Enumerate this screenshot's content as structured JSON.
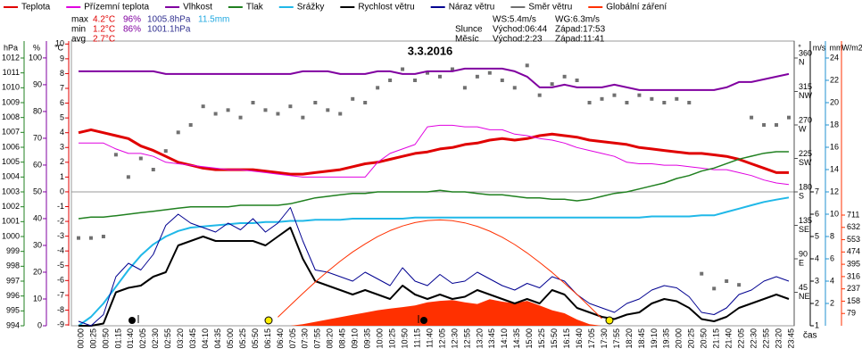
{
  "chart_data": {
    "type": "line",
    "title": "3.3.2016",
    "x_label": "čas",
    "categories": [
      "00:00",
      "00:25",
      "00:50",
      "01:15",
      "01:40",
      "02:05",
      "02:30",
      "02:55",
      "03:20",
      "03:45",
      "04:10",
      "04:35",
      "05:00",
      "05:25",
      "05:50",
      "06:15",
      "06:40",
      "07:05",
      "07:30",
      "07:55",
      "08:20",
      "08:45",
      "09:10",
      "09:35",
      "10:00",
      "10:25",
      "10:50",
      "11:15",
      "11:40",
      "12:05",
      "12:30",
      "12:55",
      "13:20",
      "13:45",
      "14:10",
      "14:35",
      "15:00",
      "15:25",
      "15:50",
      "16:15",
      "16:40",
      "17:05",
      "17:30",
      "17:55",
      "18:20",
      "18:45",
      "19:10",
      "19:35",
      "20:00",
      "20:25",
      "20:50",
      "21:15",
      "21:40",
      "22:05",
      "22:30",
      "22:55",
      "23:20",
      "23:45"
    ],
    "axes": [
      {
        "label": "hPa",
        "color": "#208020",
        "lim": [
          994,
          1013.14
        ],
        "ticks": [
          994,
          995,
          996,
          997,
          998,
          999,
          1000,
          1001,
          1002,
          1003,
          1004,
          1005,
          1006,
          1007,
          1008,
          1009,
          1010,
          1011,
          1012
        ]
      },
      {
        "label": "%",
        "color": "#8000a0",
        "lim": [
          0,
          106.3
        ],
        "ticks": [
          0,
          10,
          20,
          30,
          40,
          50,
          60,
          70,
          80,
          90,
          100
        ]
      },
      {
        "label": "°C",
        "color": "#e00000",
        "lim": [
          -9.06,
          10.2
        ],
        "ticks": [
          -9,
          -8,
          -7,
          -6,
          -5,
          -4,
          -3,
          -2,
          -1,
          0,
          1,
          2,
          3,
          4,
          5,
          6,
          7,
          8,
          9,
          10
        ]
      },
      {
        "label": "°",
        "color": "#505050",
        "lim": [
          0,
          382.8
        ],
        "ticks": [
          45,
          90,
          135,
          180,
          225,
          270,
          315,
          360
        ],
        "compass": [
          "NE",
          "E",
          "SE",
          "S",
          "SW",
          "W",
          "NW",
          "N"
        ]
      },
      {
        "label": "m/s",
        "color": "#000000",
        "lim": [
          1,
          13.76
        ],
        "ticks": [
          1,
          2,
          3,
          4,
          5,
          6,
          7
        ]
      },
      {
        "label": "mm",
        "color": "#2090d0",
        "lim": [
          0,
          25.52
        ],
        "ticks": [
          2,
          4,
          6,
          8,
          10,
          12,
          14,
          16,
          18,
          20,
          22,
          24
        ]
      },
      {
        "label": "W/m2",
        "color": "#ff3000",
        "lim": [
          0,
          1829
        ],
        "ticks": [
          79,
          158,
          237,
          316,
          395,
          474,
          553,
          632,
          711
        ]
      }
    ],
    "reference_line": {
      "axis": 2,
      "value": 0
    },
    "series": [
      {
        "name": "Teplota",
        "color": "#e00000",
        "axis": 2,
        "style": "line",
        "width": 3,
        "values": [
          4.0,
          4.2,
          4.0,
          3.8,
          3.6,
          3.1,
          2.8,
          2.4,
          2.0,
          1.8,
          1.6,
          1.5,
          1.5,
          1.5,
          1.5,
          1.4,
          1.3,
          1.2,
          1.2,
          1.3,
          1.4,
          1.5,
          1.7,
          1.9,
          2.0,
          2.2,
          2.4,
          2.6,
          2.7,
          2.9,
          3.0,
          3.2,
          3.3,
          3.5,
          3.6,
          3.5,
          3.6,
          3.8,
          3.9,
          3.8,
          3.7,
          3.5,
          3.4,
          3.3,
          3.2,
          3.0,
          2.9,
          2.8,
          2.7,
          2.6,
          2.6,
          2.5,
          2.4,
          2.2,
          1.9,
          1.6,
          1.3,
          1.3
        ]
      },
      {
        "name": "Přízemní teplota",
        "color": "#e000e0",
        "axis": 2,
        "style": "line",
        "width": 1,
        "values": [
          3.3,
          3.3,
          3.3,
          2.9,
          2.6,
          2.6,
          2.4,
          2.0,
          1.9,
          1.8,
          1.7,
          1.6,
          1.5,
          1.5,
          1.4,
          1.3,
          1.2,
          1.1,
          1.0,
          1.0,
          1.0,
          1.0,
          1.0,
          1.0,
          2.0,
          2.6,
          2.9,
          3.2,
          4.4,
          4.5,
          4.5,
          4.4,
          4.4,
          4.2,
          4.2,
          3.9,
          3.8,
          3.6,
          3.5,
          3.3,
          3.0,
          2.8,
          2.6,
          2.4,
          2.0,
          1.9,
          1.9,
          1.8,
          1.8,
          1.7,
          1.6,
          1.5,
          1.5,
          1.3,
          1.1,
          0.8,
          0.6,
          0.5
        ]
      },
      {
        "name": "Vlhkost",
        "color": "#8000a0",
        "axis": 1,
        "style": "line",
        "width": 2,
        "values": [
          95,
          95,
          95,
          95,
          95,
          95,
          95,
          94,
          94,
          94,
          94,
          94,
          94,
          94,
          94,
          94,
          94,
          94,
          95,
          95,
          95,
          94,
          94,
          94,
          95,
          95,
          94,
          94,
          95,
          95,
          95,
          96,
          96,
          96,
          96,
          95,
          93,
          89,
          89,
          90,
          89,
          89,
          89,
          90,
          89,
          88,
          88,
          88,
          88,
          88,
          88,
          88,
          89,
          91,
          91,
          92,
          93,
          94
        ]
      },
      {
        "name": "Tlak",
        "color": "#208020",
        "axis": 0,
        "style": "line",
        "width": 1.5,
        "values": [
          1001.2,
          1001.3,
          1001.3,
          1001.4,
          1001.5,
          1001.6,
          1001.7,
          1001.8,
          1001.9,
          1002.0,
          1002.0,
          1002.0,
          1002.0,
          1002.1,
          1002.1,
          1002.1,
          1002.1,
          1002.2,
          1002.4,
          1002.6,
          1002.7,
          1002.8,
          1002.9,
          1002.9,
          1003.0,
          1003.0,
          1003.0,
          1003.0,
          1003.0,
          1003.1,
          1003.0,
          1003.0,
          1002.9,
          1002.8,
          1002.8,
          1002.7,
          1002.6,
          1002.6,
          1002.5,
          1002.5,
          1002.4,
          1002.5,
          1002.7,
          1002.9,
          1003.0,
          1003.2,
          1003.4,
          1003.6,
          1003.9,
          1004.1,
          1004.4,
          1004.6,
          1004.9,
          1005.2,
          1005.4,
          1005.6,
          1005.7,
          1005.7
        ]
      },
      {
        "name": "Srážky",
        "color": "#20b8e8",
        "axis": 5,
        "style": "line",
        "width": 2,
        "values": [
          0,
          0.8,
          2.0,
          3.5,
          5.0,
          6.3,
          7.3,
          8.0,
          8.5,
          8.8,
          8.9,
          9.0,
          9.1,
          9.2,
          9.2,
          9.3,
          9.3,
          9.4,
          9.4,
          9.5,
          9.5,
          9.5,
          9.6,
          9.6,
          9.6,
          9.6,
          9.6,
          9.7,
          9.7,
          9.7,
          9.7,
          9.7,
          9.7,
          9.7,
          9.7,
          9.7,
          9.7,
          9.7,
          9.7,
          9.7,
          9.7,
          9.7,
          9.7,
          9.7,
          9.7,
          9.7,
          9.8,
          9.8,
          9.8,
          9.8,
          9.9,
          9.9,
          10.2,
          10.5,
          10.8,
          11.1,
          11.3,
          11.5
        ]
      },
      {
        "name": "Rychlost větru",
        "color": "#000000",
        "axis": 4,
        "style": "line",
        "width": 2,
        "values": [
          1.0,
          1.0,
          1.1,
          2.5,
          2.7,
          2.8,
          3.2,
          3.4,
          4.6,
          4.8,
          5.0,
          4.8,
          4.8,
          4.8,
          4.8,
          4.6,
          5.0,
          5.4,
          4.0,
          3.0,
          2.8,
          2.6,
          2.4,
          2.6,
          2.4,
          2.2,
          2.8,
          2.4,
          2.2,
          2.4,
          2.2,
          2.3,
          2.6,
          2.4,
          2.2,
          2.0,
          2.2,
          2.0,
          2.6,
          2.4,
          1.8,
          1.6,
          1.4,
          1.3,
          1.5,
          1.6,
          2.0,
          2.2,
          2.1,
          1.8,
          1.3,
          1.2,
          1.4,
          1.8,
          2.0,
          2.2,
          2.4,
          2.2
        ]
      },
      {
        "name": "Náraz větru",
        "color": "#000090",
        "axis": 4,
        "style": "line",
        "width": 1,
        "values": [
          1.2,
          1.0,
          1.5,
          3.2,
          3.8,
          3.5,
          4.2,
          5.5,
          6.0,
          5.6,
          5.4,
          5.2,
          5.6,
          5.3,
          5.8,
          5.2,
          5.6,
          6.3,
          4.8,
          3.5,
          3.4,
          3.2,
          3.0,
          3.4,
          3.1,
          2.8,
          3.6,
          3.0,
          2.8,
          3.3,
          2.9,
          3.0,
          3.4,
          3.1,
          2.8,
          2.6,
          2.9,
          2.7,
          3.2,
          3.0,
          2.4,
          2.0,
          1.8,
          1.6,
          2.0,
          2.2,
          2.6,
          2.8,
          2.7,
          2.3,
          1.6,
          1.5,
          1.8,
          2.4,
          2.6,
          3.0,
          3.2,
          3.0
        ]
      },
      {
        "name": "Směr větru",
        "color": "#707070",
        "axis": 3,
        "style": "points",
        "width": 4,
        "values": [
          118,
          118,
          120,
          230,
          200,
          225,
          210,
          235,
          260,
          270,
          295,
          285,
          290,
          280,
          300,
          290,
          285,
          295,
          280,
          300,
          290,
          285,
          305,
          300,
          320,
          330,
          345,
          330,
          340,
          335,
          345,
          320,
          335,
          340,
          330,
          320,
          350,
          310,
          325,
          335,
          330,
          300,
          305,
          310,
          300,
          310,
          305,
          300,
          305,
          300,
          70,
          50,
          60,
          55,
          280,
          270,
          270,
          280
        ]
      },
      {
        "name": "Globální záření",
        "color": "#ff3000",
        "axis": 6,
        "style": "area",
        "width": 1,
        "values": [
          0,
          0,
          0,
          0,
          0,
          0,
          0,
          0,
          0,
          0,
          0,
          0,
          0,
          0,
          0,
          0,
          0,
          0,
          10,
          25,
          40,
          55,
          70,
          85,
          100,
          110,
          120,
          130,
          150,
          160,
          165,
          150,
          140,
          170,
          155,
          145,
          160,
          130,
          100,
          80,
          40,
          10,
          0,
          0,
          0,
          0,
          0,
          0,
          0,
          0,
          0,
          0,
          0,
          0,
          0,
          0,
          0,
          0
        ]
      },
      {
        "color": "#ff3000",
        "axis": 6,
        "style": "line",
        "width": 1,
        "values": [
          null,
          null,
          null,
          null,
          null,
          null,
          null,
          null,
          null,
          null,
          null,
          null,
          null,
          null,
          null,
          null,
          55,
          132,
          208,
          281,
          350,
          415,
          474,
          526,
          573,
          611,
          641,
          663,
          676,
          680,
          675,
          661,
          639,
          608,
          569,
          522,
          468,
          407,
          343,
          273,
          201,
          124,
          46,
          null,
          null,
          null,
          null,
          null,
          null,
          null,
          null,
          null,
          null,
          null,
          null,
          null,
          null,
          null
        ]
      }
    ],
    "stats": {
      "rows": [
        {
          "label": "max",
          "temp": "4.2°C",
          "humidity": "96%",
          "pressure": "1005.8hPa",
          "rain": "11.5mm"
        },
        {
          "label": "min",
          "temp": "1.2°C",
          "humidity": "86%",
          "pressure": "1001.1hPa"
        },
        {
          "label": "avg",
          "temp": "2.7°C"
        }
      ],
      "ws": "WS:5.4m/s",
      "wg": "WG:6.3m/s",
      "sun": {
        "label": "Slunce",
        "rise": "Východ:06:44",
        "set": "Západ:17:53"
      },
      "moon": {
        "label": "Měsíc",
        "rise": "Východ:2:23",
        "set": "Západ:11:41"
      }
    }
  }
}
